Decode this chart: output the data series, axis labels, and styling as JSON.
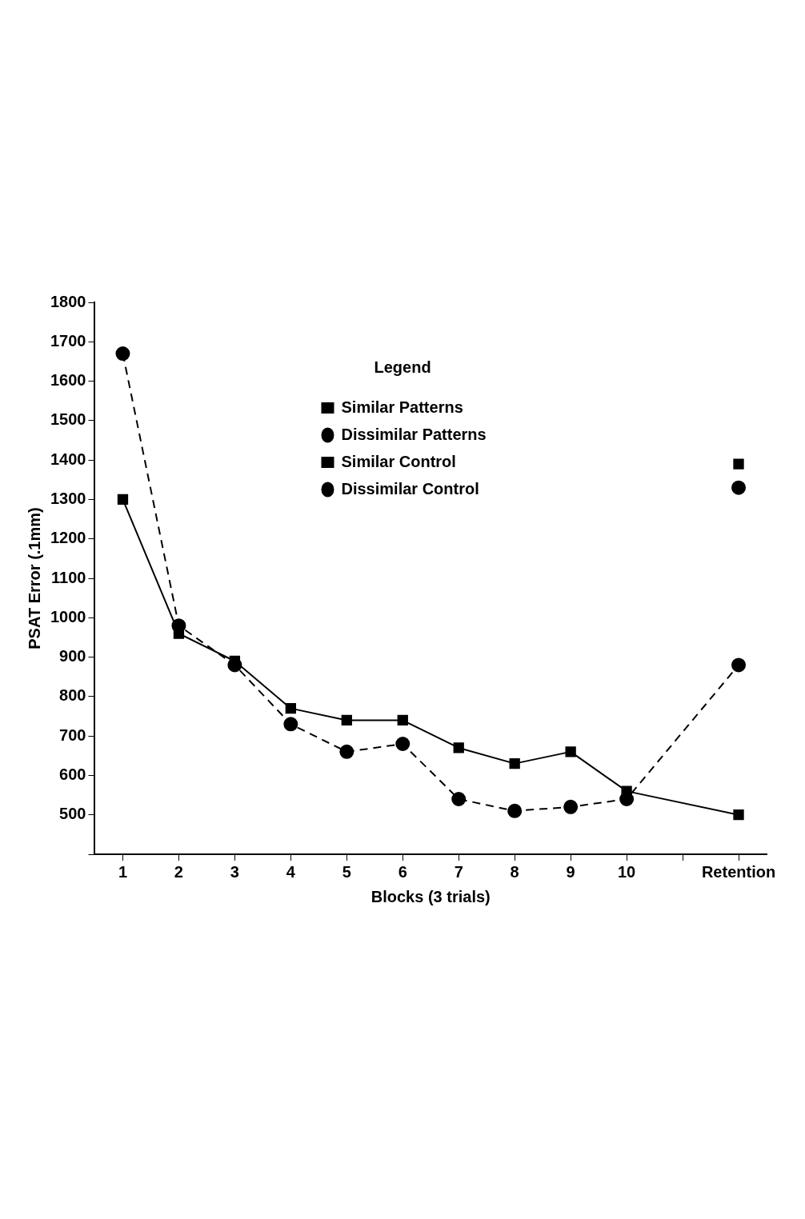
{
  "chart_data": {
    "type": "line",
    "xlabel": "Blocks (3 trials)",
    "ylabel": "PSAT Error (.1mm)",
    "legend_title": "Legend",
    "legend": "top",
    "grid": false,
    "categories": [
      "1",
      "2",
      "3",
      "4",
      "5",
      "6",
      "7",
      "8",
      "9",
      "10",
      null,
      "Retention"
    ],
    "ylim": [
      400,
      1800
    ],
    "yticks": [
      {
        "value": 400,
        "label": null
      },
      500,
      600,
      700,
      800,
      900,
      1000,
      1100,
      1200,
      1300,
      1400,
      1500,
      1600,
      1700,
      1800
    ],
    "series": [
      {
        "name": "Similar Patterns",
        "color": "#000000",
        "marker": "square",
        "line_style": "solid",
        "values": [
          1300,
          960,
          890,
          770,
          740,
          740,
          670,
          630,
          660,
          560,
          null,
          500
        ]
      },
      {
        "name": "Dissimilar Patterns",
        "color": "#000000",
        "marker": "circle",
        "line_style": "dashed",
        "values": [
          1670,
          980,
          880,
          730,
          660,
          680,
          540,
          510,
          520,
          540,
          null,
          880
        ]
      },
      {
        "name": "Similar Control",
        "type": "scatter",
        "color": "#000000",
        "marker": "square",
        "values": [
          null,
          null,
          null,
          null,
          null,
          null,
          null,
          null,
          null,
          null,
          null,
          1390
        ]
      },
      {
        "name": "Dissimilar Control",
        "type": "scatter",
        "color": "#000000",
        "marker": "circle",
        "values": [
          null,
          null,
          null,
          null,
          null,
          null,
          null,
          null,
          null,
          null,
          null,
          1330
        ]
      }
    ]
  }
}
